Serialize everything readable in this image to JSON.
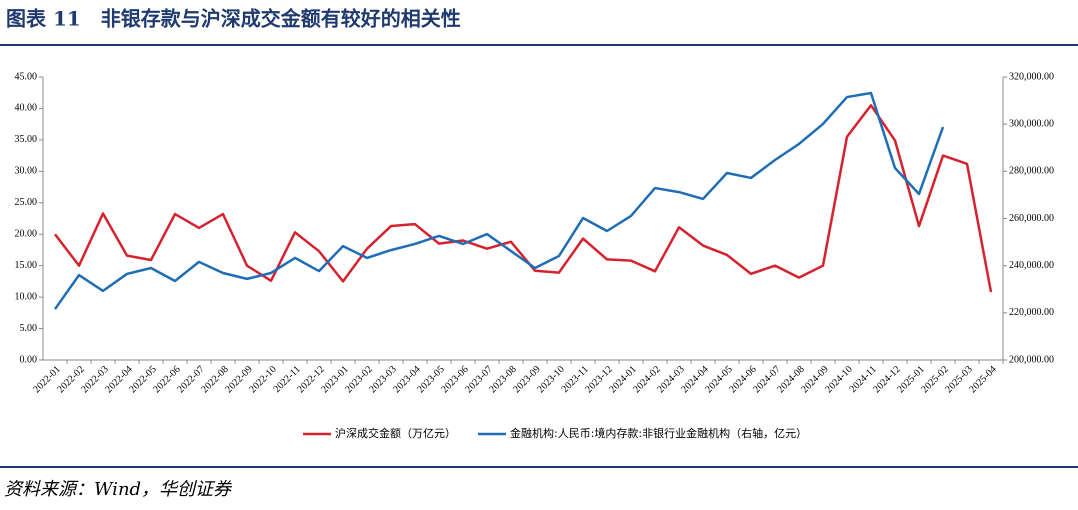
{
  "chart_data": {
    "type": "line",
    "title": "图表 11　非银存款与沪深成交金额有较好的相关性",
    "source": "资料来源：Wind，华创证券",
    "categories": [
      "2022-01",
      "2022-02",
      "2022-03",
      "2022-04",
      "2022-05",
      "2022-06",
      "2022-07",
      "2022-08",
      "2022-09",
      "2022-10",
      "2022-11",
      "2022-12",
      "2023-01",
      "2023-02",
      "2023-03",
      "2023-04",
      "2023-05",
      "2023-06",
      "2023-07",
      "2023-08",
      "2023-09",
      "2023-10",
      "2023-11",
      "2023-12",
      "2024-01",
      "2024-02",
      "2024-03",
      "2024-04",
      "2024-05",
      "2024-06",
      "2024-07",
      "2024-08",
      "2024-09",
      "2024-10",
      "2024-11",
      "2024-12",
      "2025-01",
      "2025-02",
      "2025-03",
      "2025-04"
    ],
    "series": [
      {
        "name": "沪深成交金额（万亿元）",
        "color": "#d6212e",
        "axis": "y",
        "values": [
          20.0,
          15.0,
          23.3,
          16.6,
          15.9,
          23.2,
          21.0,
          23.2,
          15.0,
          12.6,
          20.3,
          17.3,
          12.5,
          17.7,
          21.3,
          21.6,
          18.5,
          19.0,
          17.7,
          18.8,
          14.2,
          13.9,
          19.3,
          16.0,
          15.8,
          14.1,
          21.1,
          18.2,
          16.7,
          13.7,
          15.0,
          13.1,
          15.0,
          35.5,
          40.5,
          34.9,
          21.3,
          32.5,
          31.2,
          10.8
        ]
      },
      {
        "name": "金融机构:人民币:境内存款:非银行业金融机构（右轴，亿元）",
        "color": "#1f6db5",
        "axis": "y2",
        "values": [
          221600,
          236000,
          229300,
          236500,
          239000,
          233500,
          241600,
          236900,
          234400,
          236900,
          243300,
          237700,
          248300,
          243300,
          246600,
          249200,
          252600,
          249200,
          253400,
          246200,
          239000,
          244100,
          260200,
          254700,
          261100,
          272900,
          271200,
          268300,
          279300,
          277200,
          284800,
          291600,
          300100,
          311500,
          313200,
          281400,
          270400,
          298800,
          null,
          null
        ]
      }
    ],
    "ylim": [
      0,
      45
    ],
    "yticks": [
      {
        "value": 0,
        "label": "0.00"
      },
      {
        "value": 5,
        "label": "5.00"
      },
      {
        "value": 10,
        "label": "10.00"
      },
      {
        "value": 15,
        "label": "15.00"
      },
      {
        "value": 20,
        "label": "20.00"
      },
      {
        "value": 25,
        "label": "25.00"
      },
      {
        "value": 30,
        "label": "30.00"
      },
      {
        "value": 35,
        "label": "35.00"
      },
      {
        "value": 40,
        "label": "40.00"
      },
      {
        "value": 45,
        "label": "45.00"
      }
    ],
    "y2lim": [
      200000,
      320000
    ],
    "y2ticks": [
      {
        "value": 200000,
        "label": "200,000.00"
      },
      {
        "value": 220000,
        "label": "220,000.00"
      },
      {
        "value": 240000,
        "label": "240,000.00"
      },
      {
        "value": 260000,
        "label": "260,000.00"
      },
      {
        "value": 280000,
        "label": "280,000.00"
      },
      {
        "value": 300000,
        "label": "300,000.00"
      },
      {
        "value": 320000,
        "label": "320,000.00"
      }
    ],
    "grid": false,
    "legend": "bottom"
  }
}
